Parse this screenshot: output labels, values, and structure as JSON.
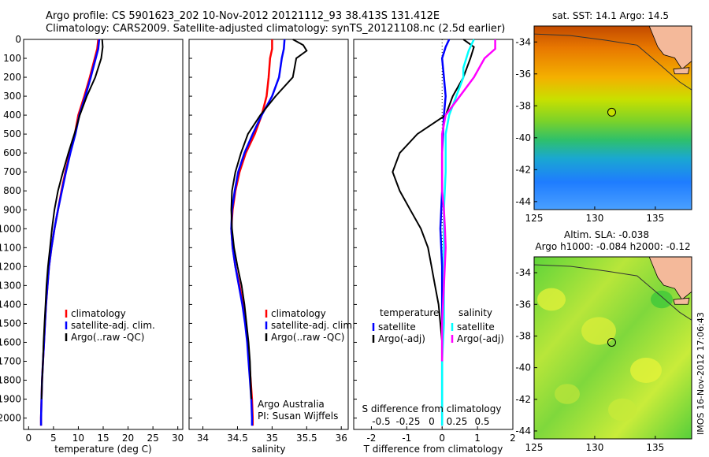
{
  "header": {
    "line1": "Argo profile: CS 5901623_202 10-Nov-2012 20121112_93 38.413S 131.412E",
    "line2": "Climatology: CARS2009. Satellite-adjusted climatology: synTS_20121108.nc (2.5d earlier)"
  },
  "colors": {
    "climatology": "#ff0000",
    "satellite": "#0000ff",
    "argo": "#000000",
    "sal_satellite": "#00ffff",
    "sal_argo": "#ff00ff",
    "land": "#f4b99a"
  },
  "chart_data": [
    {
      "type": "line",
      "ylabel": "",
      "xlabel": "temperature (deg C)",
      "xlim": [
        -1,
        31
      ],
      "ylim": [
        2060,
        0
      ],
      "x_ticks": [
        0,
        5,
        10,
        15,
        20,
        25,
        30
      ],
      "y_ticks": [
        0,
        100,
        200,
        300,
        400,
        500,
        600,
        700,
        800,
        900,
        1000,
        1100,
        1200,
        1300,
        1400,
        1500,
        1600,
        1700,
        1800,
        1900,
        2000
      ],
      "legend": [
        "climatology",
        "satellite-adj. clim.",
        "Argo(..raw -QC)"
      ],
      "series": [
        {
          "name": "climatology",
          "color": "#ff0000",
          "points": [
            [
              14.0,
              0
            ],
            [
              13.8,
              50
            ],
            [
              13.3,
              100
            ],
            [
              12.3,
              200
            ],
            [
              11.2,
              300
            ],
            [
              10.0,
              400
            ],
            [
              9.3,
              500
            ],
            [
              8.3,
              600
            ],
            [
              7.4,
              700
            ],
            [
              6.6,
              800
            ],
            [
              5.9,
              900
            ],
            [
              5.2,
              1000
            ],
            [
              4.6,
              1100
            ],
            [
              4.1,
              1200
            ],
            [
              3.8,
              1300
            ],
            [
              3.5,
              1400
            ],
            [
              3.3,
              1500
            ],
            [
              3.1,
              1600
            ],
            [
              2.9,
              1700
            ],
            [
              2.7,
              1800
            ],
            [
              2.6,
              1900
            ],
            [
              2.5,
              2000
            ],
            [
              2.5,
              2040
            ]
          ]
        },
        {
          "name": "satellite-adj. clim.",
          "color": "#0000ff",
          "points": [
            [
              14.2,
              0
            ],
            [
              14.0,
              50
            ],
            [
              13.5,
              100
            ],
            [
              12.5,
              200
            ],
            [
              11.4,
              300
            ],
            [
              10.2,
              400
            ],
            [
              9.4,
              500
            ],
            [
              8.4,
              600
            ],
            [
              7.5,
              700
            ],
            [
              6.7,
              800
            ],
            [
              5.9,
              900
            ],
            [
              5.2,
              1000
            ],
            [
              4.6,
              1100
            ],
            [
              4.1,
              1200
            ],
            [
              3.8,
              1300
            ],
            [
              3.5,
              1400
            ],
            [
              3.3,
              1500
            ],
            [
              3.1,
              1600
            ],
            [
              2.9,
              1700
            ],
            [
              2.7,
              1800
            ],
            [
              2.6,
              1900
            ],
            [
              2.5,
              2000
            ],
            [
              2.5,
              2040
            ]
          ]
        },
        {
          "name": "Argo(..raw -QC)",
          "color": "#000000",
          "points": [
            [
              14.8,
              0
            ],
            [
              14.9,
              40
            ],
            [
              14.6,
              100
            ],
            [
              13.4,
              200
            ],
            [
              11.7,
              300
            ],
            [
              10.3,
              400
            ],
            [
              9.2,
              500
            ],
            [
              8.0,
              600
            ],
            [
              6.9,
              700
            ],
            [
              5.9,
              800
            ],
            [
              5.2,
              900
            ],
            [
              4.7,
              1000
            ],
            [
              4.3,
              1100
            ],
            [
              3.9,
              1200
            ],
            [
              3.6,
              1300
            ],
            [
              3.4,
              1400
            ],
            [
              3.2,
              1500
            ],
            [
              3.0,
              1600
            ],
            [
              2.9,
              1700
            ],
            [
              2.7,
              1800
            ],
            [
              2.6,
              1900
            ]
          ]
        }
      ]
    },
    {
      "type": "line",
      "xlabel": "salinity",
      "xlim": [
        33.8,
        36.1
      ],
      "ylim": [
        2060,
        0
      ],
      "x_ticks": [
        34,
        34.5,
        35,
        35.5,
        36
      ],
      "legend": [
        "climatology",
        "satellite-adj. clim.",
        "Argo(..raw -QC)"
      ],
      "annotation": [
        "Argo Australia",
        "PI: Susan Wijffels"
      ],
      "series": [
        {
          "name": "climatology",
          "color": "#ff0000",
          "points": [
            [
              35.0,
              0
            ],
            [
              35.0,
              50
            ],
            [
              34.97,
              100
            ],
            [
              34.95,
              200
            ],
            [
              34.92,
              300
            ],
            [
              34.85,
              400
            ],
            [
              34.75,
              500
            ],
            [
              34.62,
              600
            ],
            [
              34.53,
              700
            ],
            [
              34.47,
              800
            ],
            [
              34.43,
              900
            ],
            [
              34.41,
              1000
            ],
            [
              34.43,
              1100
            ],
            [
              34.47,
              1200
            ],
            [
              34.53,
              1300
            ],
            [
              34.58,
              1400
            ],
            [
              34.62,
              1500
            ],
            [
              34.65,
              1600
            ],
            [
              34.67,
              1700
            ],
            [
              34.69,
              1800
            ],
            [
              34.71,
              1900
            ],
            [
              34.72,
              2000
            ],
            [
              34.72,
              2040
            ]
          ]
        },
        {
          "name": "satellite-adj. clim.",
          "color": "#0000ff",
          "points": [
            [
              35.18,
              0
            ],
            [
              35.17,
              50
            ],
            [
              35.14,
              100
            ],
            [
              35.1,
              200
            ],
            [
              35.0,
              300
            ],
            [
              34.85,
              400
            ],
            [
              34.72,
              500
            ],
            [
              34.6,
              600
            ],
            [
              34.51,
              700
            ],
            [
              34.46,
              800
            ],
            [
              34.42,
              900
            ],
            [
              34.41,
              1000
            ],
            [
              34.43,
              1100
            ],
            [
              34.47,
              1200
            ],
            [
              34.52,
              1300
            ],
            [
              34.57,
              1400
            ],
            [
              34.61,
              1500
            ],
            [
              34.64,
              1600
            ],
            [
              34.66,
              1700
            ],
            [
              34.68,
              1800
            ],
            [
              34.7,
              1900
            ],
            [
              34.71,
              2000
            ],
            [
              34.71,
              2040
            ]
          ]
        },
        {
          "name": "Argo(..raw -QC)",
          "color": "#000000",
          "points": [
            [
              35.3,
              0
            ],
            [
              35.45,
              30
            ],
            [
              35.5,
              60
            ],
            [
              35.35,
              100
            ],
            [
              35.3,
              200
            ],
            [
              35.05,
              300
            ],
            [
              34.83,
              400
            ],
            [
              34.65,
              500
            ],
            [
              34.55,
              600
            ],
            [
              34.47,
              700
            ],
            [
              34.42,
              800
            ],
            [
              34.41,
              900
            ],
            [
              34.42,
              1000
            ],
            [
              34.45,
              1100
            ],
            [
              34.5,
              1200
            ],
            [
              34.56,
              1300
            ],
            [
              34.6,
              1400
            ],
            [
              34.63,
              1500
            ],
            [
              34.66,
              1600
            ],
            [
              34.68,
              1700
            ],
            [
              34.69,
              1800
            ],
            [
              34.7,
              1900
            ]
          ]
        }
      ]
    },
    {
      "type": "line",
      "xlabel": "T difference from climatology",
      "top_label": "S difference from climatology",
      "xlim": [
        -2.5,
        2.0
      ],
      "ylim": [
        2060,
        0
      ],
      "x_ticks": [
        -2,
        -1,
        0,
        1,
        2
      ],
      "x_tick_labels": [
        "-2",
        "-1",
        "0",
        "1",
        "2"
      ],
      "top_ticks": [
        "-0.5",
        "-0.25",
        "0",
        "0.25",
        "0.5"
      ],
      "legend_headers": [
        "temperature",
        "salinity"
      ],
      "legend": [
        "satellite",
        "Argo(-adj)",
        "satellite",
        "Argo(-adj)"
      ],
      "series": [
        {
          "name": "satellite",
          "color": "#0000ff",
          "points": [
            [
              0.2,
              0
            ],
            [
              0.1,
              40
            ],
            [
              0.0,
              100
            ],
            [
              0.05,
              200
            ],
            [
              0.1,
              300
            ],
            [
              0.05,
              400
            ],
            [
              0.0,
              600
            ],
            [
              0.0,
              800
            ],
            [
              -0.05,
              1000
            ],
            [
              0.0,
              1200
            ],
            [
              0.0,
              1400
            ],
            [
              0.0,
              1600
            ],
            [
              0.0,
              1800
            ],
            [
              0.0,
              2040
            ]
          ]
        },
        {
          "name": "Argo(-adj)",
          "color": "#000000",
          "points": [
            [
              0.6,
              0
            ],
            [
              0.9,
              40
            ],
            [
              0.8,
              100
            ],
            [
              0.6,
              200
            ],
            [
              0.3,
              300
            ],
            [
              0.1,
              400
            ],
            [
              -0.7,
              500
            ],
            [
              -1.2,
              600
            ],
            [
              -1.4,
              700
            ],
            [
              -1.2,
              800
            ],
            [
              -0.9,
              900
            ],
            [
              -0.6,
              1000
            ],
            [
              -0.4,
              1100
            ],
            [
              -0.3,
              1200
            ],
            [
              -0.2,
              1300
            ],
            [
              -0.1,
              1400
            ],
            [
              -0.05,
              1500
            ],
            [
              0.0,
              1600
            ],
            [
              0.0,
              1800
            ],
            [
              0.0,
              1900
            ]
          ]
        },
        {
          "name": "satellite",
          "color": "#00ffff",
          "points": [
            [
              0.9,
              0
            ],
            [
              0.75,
              60
            ],
            [
              0.6,
              150
            ],
            [
              0.6,
              200
            ],
            [
              0.4,
              300
            ],
            [
              0.2,
              400
            ],
            [
              0.1,
              500
            ],
            [
              0.1,
              700
            ],
            [
              0.05,
              900
            ],
            [
              0.05,
              1100
            ],
            [
              0.05,
              1300
            ],
            [
              0.05,
              1500
            ],
            [
              0.0,
              1700
            ],
            [
              0.0,
              2040
            ]
          ]
        },
        {
          "name": "Argo(-adj)",
          "color": "#ff00ff",
          "points": [
            [
              1.5,
              0
            ],
            [
              1.5,
              50
            ],
            [
              1.2,
              100
            ],
            [
              0.9,
              200
            ],
            [
              0.5,
              300
            ],
            [
              0.1,
              400
            ],
            [
              0.0,
              500
            ],
            [
              0.0,
              600
            ],
            [
              0.0,
              700
            ],
            [
              0.0,
              800
            ],
            [
              0.05,
              900
            ],
            [
              0.08,
              1000
            ],
            [
              0.1,
              1100
            ],
            [
              0.05,
              1300
            ],
            [
              0.0,
              1500
            ],
            [
              0.0,
              1700
            ]
          ]
        }
      ]
    },
    {
      "type": "heatmap",
      "title": "sat. SST: 14.1 Argo: 14.5",
      "xlim": [
        125,
        138
      ],
      "ylim": [
        -44.5,
        -33
      ],
      "x_ticks": [
        125,
        130,
        135
      ],
      "y_ticks": [
        -34,
        -36,
        -38,
        -40,
        -42,
        -44
      ],
      "marker": {
        "lon": 131.4,
        "lat": -38.4
      }
    },
    {
      "type": "heatmap",
      "title": "Altim. SLA: -0.038",
      "subtitle": "Argo h1000: -0.084 h2000: -0.12",
      "xlim": [
        125,
        138
      ],
      "ylim": [
        -44.5,
        -33
      ],
      "x_ticks": [
        125,
        130,
        135
      ],
      "y_ticks": [
        -34,
        -36,
        -38,
        -40,
        -42,
        -44
      ],
      "marker": {
        "lon": 131.4,
        "lat": -38.4
      }
    }
  ],
  "side_label": "IMOS 16-Nov-2012 17:06:43"
}
